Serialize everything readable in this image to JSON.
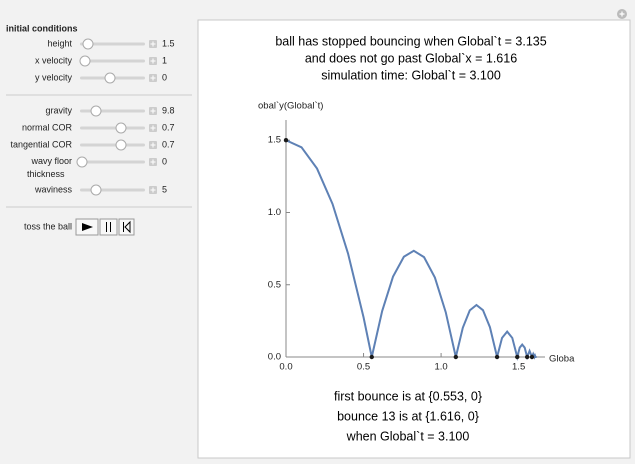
{
  "controls": {
    "section_title": "initial conditions",
    "groups": [
      [
        {
          "label": "height",
          "value": 1.5
        },
        {
          "label": "x velocity",
          "value": 1
        },
        {
          "label": "y velocity",
          "value": 0
        }
      ],
      [
        {
          "label": "gravity",
          "value": 9.8
        },
        {
          "label": "normal COR",
          "value": 0.7
        },
        {
          "label": "tangential COR",
          "value": 0.7
        },
        {
          "label": "wavy floor thickness",
          "value": 0
        },
        {
          "label": "waviness",
          "value": 5
        }
      ]
    ],
    "button_label": "toss the ball"
  },
  "chart_data": {
    "type": "line",
    "title_lines": [
      "ball has stopped bouncing when Global`t = 3.135",
      "and does not go past Global`x = 1.616",
      "simulation time: Global`t = 3.100"
    ],
    "ylabel": "obal`y(Global`t)",
    "xlabel": "Globa",
    "x": [
      0,
      0.1,
      0.2,
      0.3,
      0.4,
      0.5,
      0.553,
      0.62,
      0.69,
      0.76,
      0.824,
      0.89,
      0.96,
      1.03,
      1.095,
      1.14,
      1.185,
      1.228,
      1.27,
      1.315,
      1.361,
      1.393,
      1.426,
      1.459,
      1.491,
      1.507,
      1.523,
      1.539,
      1.555,
      1.5705,
      1.586,
      1.594,
      1.602,
      1.6055,
      1.609,
      1.616
    ],
    "series": [
      {
        "color": "#5e81b5",
        "values": [
          1.5,
          1.451,
          1.304,
          1.059,
          0.716,
          0.275,
          0,
          0.318,
          0.556,
          0.694,
          0.735,
          0.691,
          0.55,
          0.31,
          0,
          0.202,
          0.323,
          0.36,
          0.324,
          0.206,
          0,
          0.132,
          0.176,
          0.132,
          0,
          0.065,
          0.086,
          0.065,
          0,
          0.042,
          0,
          0.021,
          0,
          0.01,
          0,
          0
        ]
      }
    ],
    "points": {
      "color": "#1a1a1a",
      "x": [
        0,
        0.553,
        1.095,
        1.361,
        1.491,
        1.555,
        1.586
      ],
      "y": [
        1.5,
        0,
        0,
        0,
        0,
        0,
        0
      ]
    },
    "xlim": [
      0,
      1.67
    ],
    "ylim": [
      0,
      1.64
    ],
    "xticks": [
      {
        "value": 0,
        "label": "0.0"
      },
      {
        "value": 0.5,
        "label": "0.5"
      },
      {
        "value": 1,
        "label": "1.0"
      },
      {
        "value": 1.5,
        "label": "1.5"
      }
    ],
    "yticks": [
      {
        "value": 0,
        "label": "0.0"
      },
      {
        "value": 0.5,
        "label": "0.5"
      },
      {
        "value": 1,
        "label": "1.0"
      },
      {
        "value": 1.5,
        "label": "1.5"
      }
    ],
    "annotations": [
      "first bounce is at {0.553, 0}",
      "bounce 13 is at {1.616, 0}",
      "when Global`t = 3.100"
    ]
  }
}
